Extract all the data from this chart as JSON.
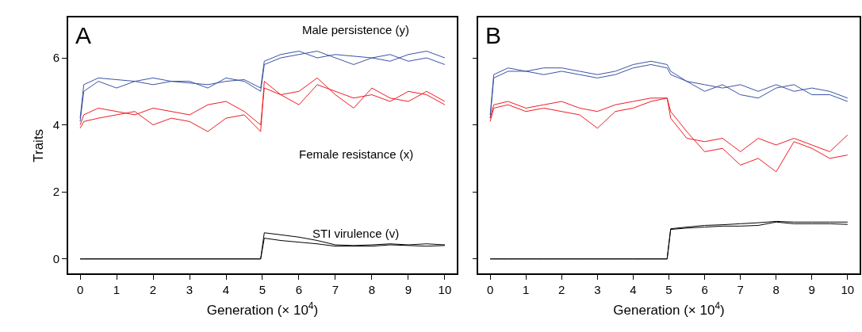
{
  "chart_data": [
    {
      "type": "line",
      "xlabel": "Generation (× 10$^{4}$)",
      "ylabel": "Traits",
      "xlim": [
        -0.33,
        10.33
      ],
      "ylim": [
        -0.44,
        7.2
      ],
      "xticks": [
        0,
        1,
        2,
        3,
        4,
        5,
        6,
        7,
        8,
        9,
        10
      ],
      "yticks": [
        0,
        2,
        4,
        6
      ],
      "x": [
        0,
        0.1,
        0.5,
        1,
        1.5,
        2,
        2.5,
        3,
        3.5,
        4,
        4.5,
        4.95,
        5.05,
        5.5,
        6,
        6.5,
        7,
        7.5,
        8,
        8.5,
        9,
        9.5,
        10
      ],
      "series": [
        {
          "color": "#3a53a4",
          "values": [
            4.2,
            5.2,
            5.4,
            5.35,
            5.3,
            5.4,
            5.3,
            5.25,
            5.2,
            5.3,
            5.35,
            5.1,
            5.9,
            6.1,
            6.2,
            6.0,
            6.1,
            6.05,
            6.0,
            5.9,
            6.1,
            6.2,
            6.0
          ]
        },
        {
          "color": "#3a53a4",
          "values": [
            4.1,
            5.0,
            5.3,
            5.1,
            5.3,
            5.2,
            5.3,
            5.3,
            5.1,
            5.4,
            5.3,
            5.0,
            5.8,
            6.0,
            6.1,
            6.2,
            6.0,
            5.8,
            6.0,
            6.1,
            5.9,
            6.0,
            5.8
          ]
        },
        {
          "color": "#ed1c24",
          "values": [
            4.0,
            4.3,
            4.5,
            4.4,
            4.3,
            4.5,
            4.4,
            4.3,
            4.6,
            4.7,
            4.4,
            4.0,
            5.1,
            4.9,
            4.6,
            5.2,
            5.0,
            4.8,
            4.9,
            4.7,
            5.0,
            4.9,
            4.6
          ]
        },
        {
          "color": "#ed1c24",
          "values": [
            3.9,
            4.1,
            4.2,
            4.3,
            4.4,
            4.0,
            4.2,
            4.1,
            3.8,
            4.2,
            4.3,
            3.8,
            5.3,
            4.9,
            5.0,
            5.4,
            4.9,
            4.5,
            5.1,
            4.8,
            4.7,
            5.0,
            4.7
          ]
        },
        {
          "color": "#000000",
          "values": [
            0,
            0,
            0,
            0,
            0,
            0,
            0,
            0,
            0,
            0,
            0,
            0,
            0.78,
            0.72,
            0.65,
            0.55,
            0.42,
            0.4,
            0.42,
            0.45,
            0.42,
            0.45,
            0.42
          ]
        },
        {
          "color": "#000000",
          "values": [
            0,
            0,
            0,
            0,
            0,
            0,
            0,
            0,
            0,
            0,
            0,
            0,
            0.62,
            0.55,
            0.5,
            0.45,
            0.38,
            0.38,
            0.38,
            0.42,
            0.4,
            0.38,
            0.4
          ]
        }
      ],
      "annotations": [
        "A",
        "Male persistence (y)",
        "Female resistance (x)",
        "STI virulence (v)"
      ]
    },
    {
      "type": "line",
      "xlabel": "Generation (× 10$^{4}$)",
      "xlim": [
        -0.33,
        10.33
      ],
      "ylim": [
        -0.44,
        7.2
      ],
      "xticks": [
        0,
        1,
        2,
        3,
        4,
        5,
        6,
        7,
        8,
        9,
        10
      ],
      "yticks": [
        {
          "value": 0,
          "label": null
        },
        {
          "value": 2,
          "label": null
        },
        {
          "value": 4,
          "label": null
        },
        {
          "value": 6,
          "label": null
        }
      ],
      "tick_labels": "x",
      "x": [
        0,
        0.1,
        0.5,
        1,
        1.5,
        2,
        2.5,
        3,
        3.5,
        4,
        4.5,
        4.95,
        5.05,
        5.5,
        6,
        6.5,
        7,
        7.5,
        8,
        8.5,
        9,
        9.5,
        10
      ],
      "series": [
        {
          "color": "#3a53a4",
          "values": [
            4.3,
            5.5,
            5.7,
            5.6,
            5.7,
            5.7,
            5.6,
            5.5,
            5.6,
            5.8,
            5.9,
            5.8,
            5.6,
            5.3,
            5.2,
            5.1,
            5.2,
            5.0,
            5.2,
            5.0,
            5.1,
            5.0,
            4.8
          ]
        },
        {
          "color": "#3a53a4",
          "values": [
            4.2,
            5.4,
            5.6,
            5.6,
            5.5,
            5.6,
            5.5,
            5.4,
            5.5,
            5.7,
            5.8,
            5.7,
            5.5,
            5.3,
            5.0,
            5.2,
            4.9,
            4.8,
            5.1,
            5.2,
            4.9,
            4.9,
            4.7
          ]
        },
        {
          "color": "#ed1c24",
          "values": [
            4.2,
            4.6,
            4.7,
            4.5,
            4.6,
            4.7,
            4.5,
            4.4,
            4.6,
            4.7,
            4.8,
            4.8,
            4.2,
            3.6,
            3.5,
            3.6,
            3.2,
            3.6,
            3.4,
            3.6,
            3.4,
            3.2,
            3.7
          ]
        },
        {
          "color": "#ed1c24",
          "values": [
            4.1,
            4.5,
            4.6,
            4.4,
            4.5,
            4.4,
            4.3,
            3.9,
            4.4,
            4.5,
            4.7,
            4.8,
            4.4,
            3.8,
            3.2,
            3.3,
            2.8,
            3.0,
            2.6,
            3.5,
            3.3,
            3.0,
            3.1
          ]
        },
        {
          "color": "#000000",
          "values": [
            0,
            0,
            0,
            0,
            0,
            0,
            0,
            0,
            0,
            0,
            0,
            0,
            0.9,
            0.95,
            1.0,
            1.02,
            1.05,
            1.08,
            1.12,
            1.1,
            1.1,
            1.1,
            1.1
          ]
        },
        {
          "color": "#000000",
          "values": [
            0,
            0,
            0,
            0,
            0,
            0,
            0,
            0,
            0,
            0,
            0,
            0,
            0.88,
            0.92,
            0.95,
            0.98,
            0.98,
            1.0,
            1.1,
            1.05,
            1.05,
            1.05,
            1.03
          ]
        }
      ],
      "annotations": [
        "B"
      ]
    }
  ]
}
